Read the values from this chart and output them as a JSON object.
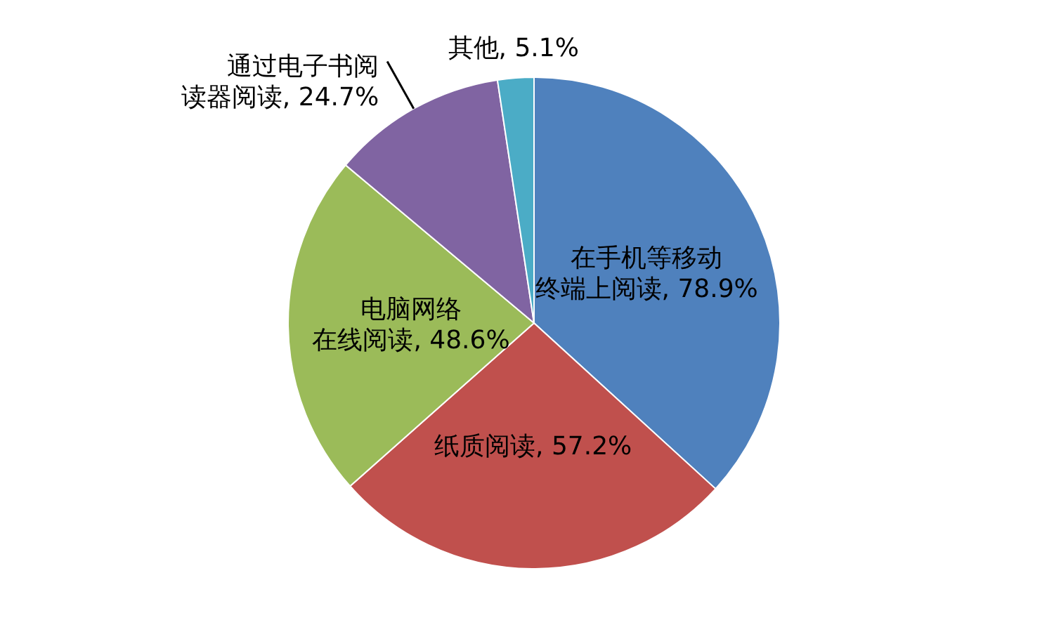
{
  "chart_data": {
    "type": "pie",
    "categories": [
      "在手机等移动终端上阅读",
      "纸质阅读",
      "电脑网络在线阅读",
      "通过电子书阅读器阅读",
      "其他"
    ],
    "values": [
      78.9,
      57.2,
      48.6,
      24.7,
      5.1
    ],
    "value_labels": [
      "78.9%",
      "57.2%",
      "48.6%",
      "24.7%",
      "5.1%"
    ],
    "colors": [
      "#4f81bd",
      "#c0504d",
      "#9bbb59",
      "#8064a2",
      "#4bacc6"
    ],
    "legend": false
  }
}
